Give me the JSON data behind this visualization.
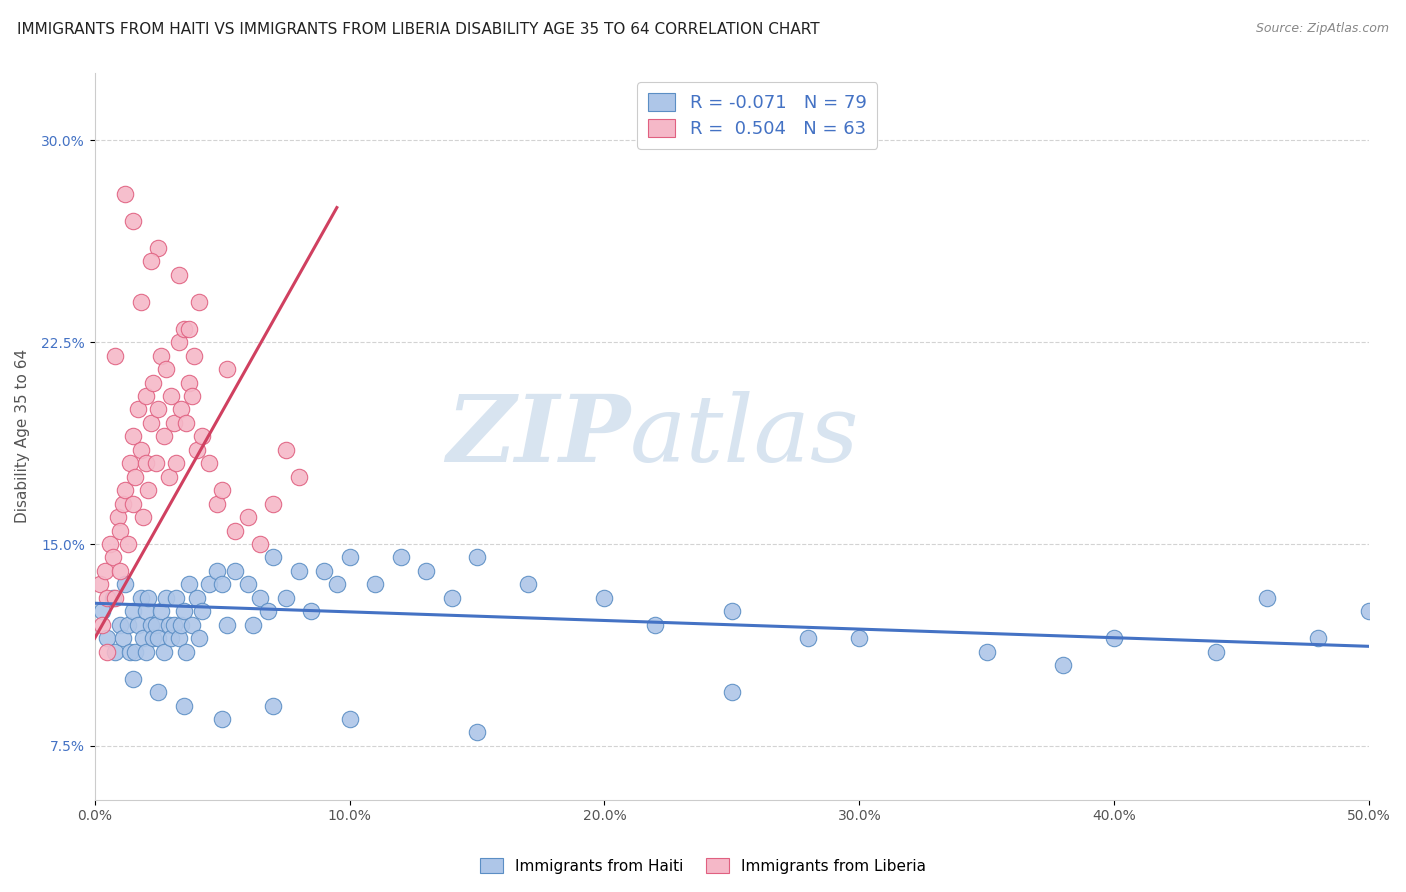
{
  "title": "IMMIGRANTS FROM HAITI VS IMMIGRANTS FROM LIBERIA DISABILITY AGE 35 TO 64 CORRELATION CHART",
  "source": "Source: ZipAtlas.com",
  "ylabel": "Disability Age 35 to 64",
  "xlim": [
    0.0,
    50.0
  ],
  "ylim": [
    5.5,
    32.5
  ],
  "yticks": [
    7.5,
    15.0,
    22.5,
    30.0
  ],
  "xticks": [
    0.0,
    10.0,
    20.0,
    30.0,
    40.0,
    50.0
  ],
  "haiti_R": -0.071,
  "haiti_N": 79,
  "liberia_R": 0.504,
  "liberia_N": 63,
  "haiti_color": "#aec6e8",
  "liberia_color": "#f5b8c8",
  "haiti_edge_color": "#5b8ec4",
  "liberia_edge_color": "#e06080",
  "haiti_line_color": "#4472c4",
  "liberia_line_color": "#d04060",
  "background_color": "#ffffff",
  "grid_color": "#c8c8c8",
  "watermark_zip": "ZIP",
  "watermark_atlas": "atlas",
  "watermark_color": "#d8e4f0",
  "title_fontsize": 11,
  "legend_color": "#4472c4",
  "haiti_x": [
    0.3,
    0.5,
    0.7,
    0.8,
    1.0,
    1.1,
    1.2,
    1.3,
    1.4,
    1.5,
    1.6,
    1.7,
    1.8,
    1.9,
    2.0,
    2.0,
    2.1,
    2.2,
    2.3,
    2.4,
    2.5,
    2.6,
    2.7,
    2.8,
    2.9,
    3.0,
    3.1,
    3.2,
    3.3,
    3.4,
    3.5,
    3.6,
    3.7,
    3.8,
    4.0,
    4.1,
    4.2,
    4.5,
    4.8,
    5.0,
    5.2,
    5.5,
    6.0,
    6.2,
    6.5,
    6.8,
    7.0,
    7.5,
    8.0,
    8.5,
    9.0,
    9.5,
    10.0,
    11.0,
    12.0,
    13.0,
    14.0,
    15.0,
    17.0,
    20.0,
    22.0,
    25.0,
    28.0,
    30.0,
    35.0,
    38.0,
    40.0,
    44.0,
    46.0,
    48.0,
    50.0,
    1.5,
    2.5,
    3.5,
    5.0,
    7.0,
    10.0,
    15.0,
    25.0
  ],
  "haiti_y": [
    12.5,
    11.5,
    13.0,
    11.0,
    12.0,
    11.5,
    13.5,
    12.0,
    11.0,
    12.5,
    11.0,
    12.0,
    13.0,
    11.5,
    12.5,
    11.0,
    13.0,
    12.0,
    11.5,
    12.0,
    11.5,
    12.5,
    11.0,
    13.0,
    12.0,
    11.5,
    12.0,
    13.0,
    11.5,
    12.0,
    12.5,
    11.0,
    13.5,
    12.0,
    13.0,
    11.5,
    12.5,
    13.5,
    14.0,
    13.5,
    12.0,
    14.0,
    13.5,
    12.0,
    13.0,
    12.5,
    14.5,
    13.0,
    14.0,
    12.5,
    14.0,
    13.5,
    14.5,
    13.5,
    14.5,
    14.0,
    13.0,
    14.5,
    13.5,
    13.0,
    12.0,
    12.5,
    11.5,
    11.5,
    11.0,
    10.5,
    11.5,
    11.0,
    13.0,
    11.5,
    12.5,
    10.0,
    9.5,
    9.0,
    8.5,
    9.0,
    8.5,
    8.0,
    9.5
  ],
  "liberia_x": [
    0.2,
    0.3,
    0.4,
    0.5,
    0.6,
    0.7,
    0.8,
    0.9,
    1.0,
    1.0,
    1.1,
    1.2,
    1.3,
    1.4,
    1.5,
    1.5,
    1.6,
    1.7,
    1.8,
    1.9,
    2.0,
    2.0,
    2.1,
    2.2,
    2.3,
    2.4,
    2.5,
    2.6,
    2.7,
    2.8,
    2.9,
    3.0,
    3.1,
    3.2,
    3.3,
    3.4,
    3.5,
    3.6,
    3.7,
    3.8,
    3.9,
    4.0,
    4.2,
    4.5,
    4.8,
    5.0,
    5.5,
    6.0,
    6.5,
    7.0,
    7.5,
    8.0,
    1.2,
    2.5,
    3.3,
    4.1,
    0.8,
    1.8,
    2.2,
    3.7,
    5.2,
    1.5,
    0.5
  ],
  "liberia_y": [
    13.5,
    12.0,
    14.0,
    13.0,
    15.0,
    14.5,
    13.0,
    16.0,
    15.5,
    14.0,
    16.5,
    17.0,
    15.0,
    18.0,
    16.5,
    19.0,
    17.5,
    20.0,
    18.5,
    16.0,
    18.0,
    20.5,
    17.0,
    19.5,
    21.0,
    18.0,
    20.0,
    22.0,
    19.0,
    21.5,
    17.5,
    20.5,
    19.5,
    18.0,
    22.5,
    20.0,
    23.0,
    19.5,
    21.0,
    20.5,
    22.0,
    18.5,
    19.0,
    18.0,
    16.5,
    17.0,
    15.5,
    16.0,
    15.0,
    16.5,
    18.5,
    17.5,
    28.0,
    26.0,
    25.0,
    24.0,
    22.0,
    24.0,
    25.5,
    23.0,
    21.5,
    27.0,
    11.0
  ],
  "haiti_line_x": [
    0.0,
    50.0
  ],
  "haiti_line_y": [
    12.8,
    11.2
  ],
  "liberia_line_x": [
    0.0,
    9.5
  ],
  "liberia_line_y": [
    11.5,
    27.5
  ]
}
